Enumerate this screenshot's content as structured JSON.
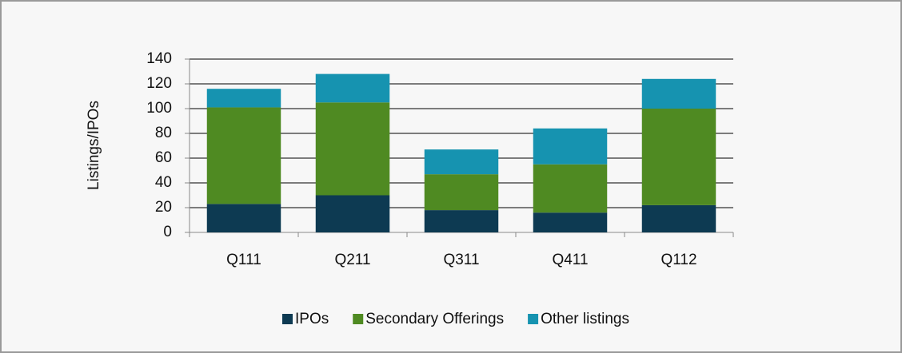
{
  "chart_data": {
    "type": "bar",
    "stacked": true,
    "ylabel": "Listings/IPOs",
    "categories": [
      "Q111",
      "Q211",
      "Q311",
      "Q411",
      "Q112"
    ],
    "series": [
      {
        "name": "IPOs",
        "color": "#0d3a52",
        "values": [
          23,
          30,
          18,
          16,
          22
        ]
      },
      {
        "name": "Secondary Offerings",
        "color": "#4f8a22",
        "values": [
          78,
          75,
          29,
          39,
          78
        ]
      },
      {
        "name": "Other listings",
        "color": "#1693b0",
        "values": [
          15,
          23,
          20,
          29,
          24
        ]
      }
    ],
    "ylim": [
      0,
      140
    ],
    "yticks": [
      0,
      20,
      40,
      60,
      80,
      100,
      120,
      140
    ],
    "grid": true,
    "legend": "bottom"
  }
}
